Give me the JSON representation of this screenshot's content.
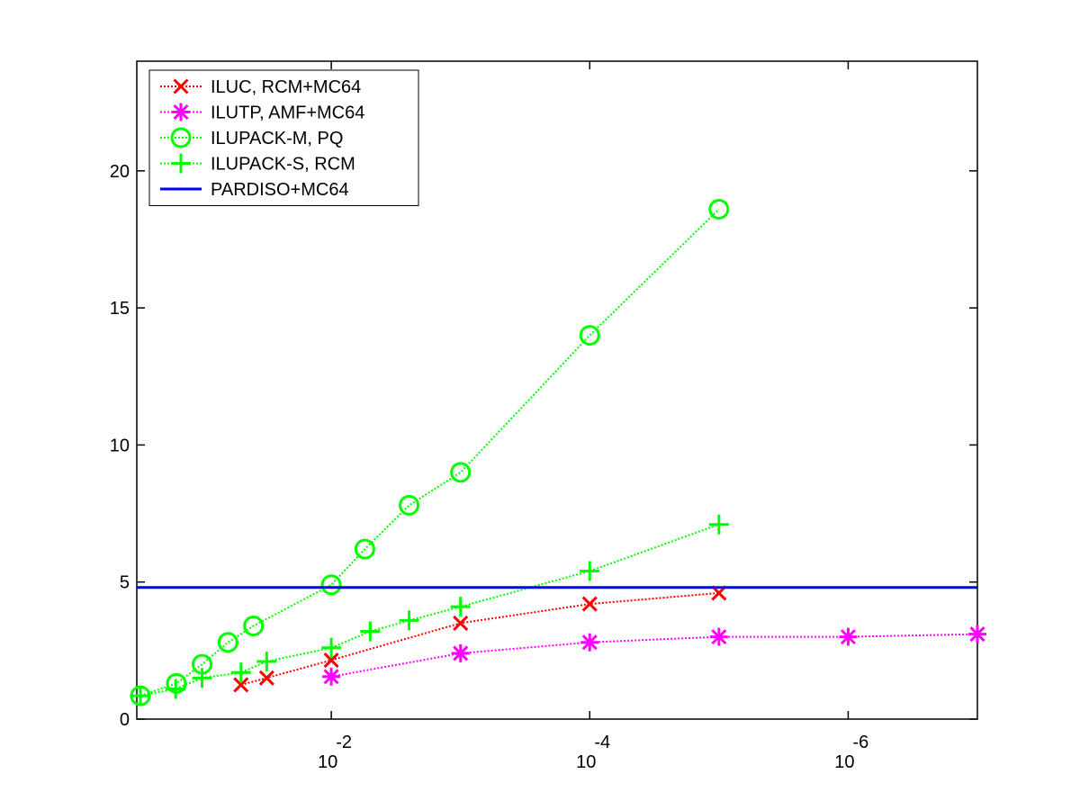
{
  "chart_data": {
    "type": "line",
    "title": "",
    "xlabel": "",
    "ylabel": "",
    "x_scale": "log-reversed",
    "xlim": [
      0.32,
      1e-07
    ],
    "ylim": [
      0,
      24
    ],
    "x_ticks": [
      {
        "value": 0.01,
        "base": "10",
        "exp": "-2"
      },
      {
        "value": 0.0001,
        "base": "10",
        "exp": "-4"
      },
      {
        "value": 1e-06,
        "base": "10",
        "exp": "-6"
      }
    ],
    "y_ticks": [
      {
        "value": 0,
        "label": "0"
      },
      {
        "value": 5,
        "label": "5"
      },
      {
        "value": 10,
        "label": "10"
      },
      {
        "value": 15,
        "label": "15"
      },
      {
        "value": 20,
        "label": "20"
      }
    ],
    "grid": false,
    "legend": {
      "position": "top-left"
    },
    "series": [
      {
        "name": "ILUC, RCM+MC64",
        "color": "#ff0000",
        "marker": "x",
        "line_style": "dotted",
        "points": [
          {
            "x": 0.05,
            "y": 1.25
          },
          {
            "x": 0.0316,
            "y": 1.5
          },
          {
            "x": 0.01,
            "y": 2.15
          },
          {
            "x": 0.001,
            "y": 3.5
          },
          {
            "x": 0.0001,
            "y": 4.2
          },
          {
            "x": 1e-05,
            "y": 4.6
          }
        ]
      },
      {
        "name": "ILUTP, AMF+MC64",
        "color": "#ff00ff",
        "marker": "asterisk",
        "line_style": "dotted",
        "points": [
          {
            "x": 0.01,
            "y": 1.55
          },
          {
            "x": 0.001,
            "y": 2.4
          },
          {
            "x": 0.0001,
            "y": 2.8
          },
          {
            "x": 1e-05,
            "y": 3.0
          },
          {
            "x": 1e-06,
            "y": 3.0
          },
          {
            "x": 1e-07,
            "y": 3.1
          }
        ]
      },
      {
        "name": "ILUPACK-M, PQ",
        "color": "#00ff00",
        "marker": "circle",
        "line_style": "dotted",
        "points": [
          {
            "x": 0.3,
            "y": 0.85
          },
          {
            "x": 0.158,
            "y": 1.3
          },
          {
            "x": 0.1,
            "y": 2.0
          },
          {
            "x": 0.063,
            "y": 2.8
          },
          {
            "x": 0.04,
            "y": 3.4
          },
          {
            "x": 0.01,
            "y": 4.9
          },
          {
            "x": 0.0055,
            "y": 6.2
          },
          {
            "x": 0.0025,
            "y": 7.8
          },
          {
            "x": 0.001,
            "y": 9.0
          },
          {
            "x": 0.0001,
            "y": 14.0
          },
          {
            "x": 1e-05,
            "y": 18.6
          }
        ]
      },
      {
        "name": "ILUPACK-S, RCM",
        "color": "#00ff00",
        "marker": "plus",
        "line_style": "dotted",
        "points": [
          {
            "x": 0.3,
            "y": 0.85
          },
          {
            "x": 0.16,
            "y": 1.1
          },
          {
            "x": 0.1,
            "y": 1.5
          },
          {
            "x": 0.05,
            "y": 1.7
          },
          {
            "x": 0.0316,
            "y": 2.1
          },
          {
            "x": 0.01,
            "y": 2.6
          },
          {
            "x": 0.005,
            "y": 3.2
          },
          {
            "x": 0.0025,
            "y": 3.6
          },
          {
            "x": 0.001,
            "y": 4.1
          },
          {
            "x": 0.0001,
            "y": 5.4
          },
          {
            "x": 1e-05,
            "y": 7.1
          }
        ]
      },
      {
        "name": "PARDISO+MC64",
        "color": "#0000ff",
        "marker": "none",
        "line_style": "solid",
        "points": [
          {
            "x": 0.32,
            "y": 4.8
          },
          {
            "x": 1e-07,
            "y": 4.8
          }
        ]
      }
    ]
  }
}
